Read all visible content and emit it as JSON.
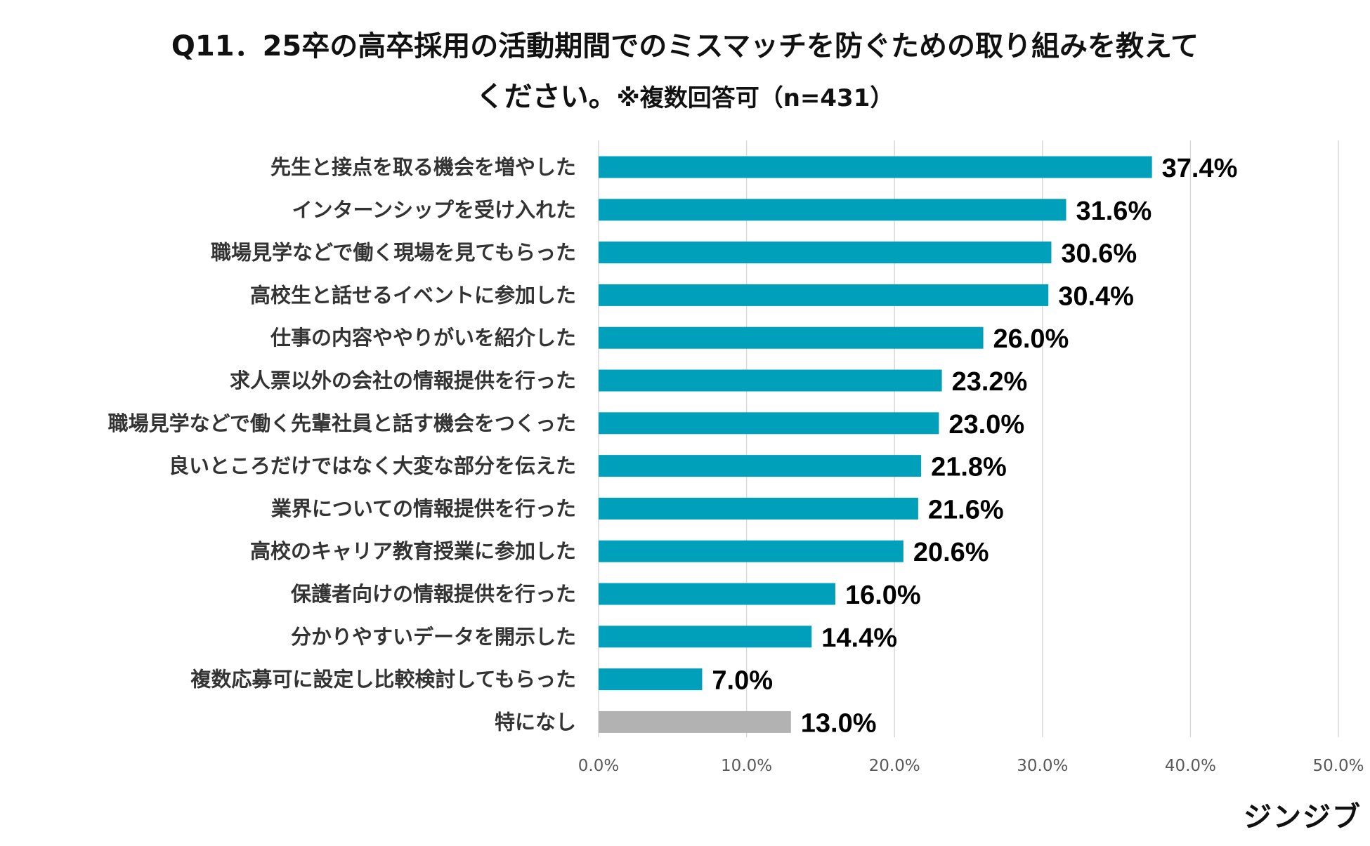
{
  "header": {
    "title_line1": "Q11．25卒の高卒採用の活動期間でのミスマッチを防ぐための取り組みを教えて",
    "title_line2": "ください。",
    "title_note": "※複数回答可（n=431）"
  },
  "brand": {
    "logo_text": "ジンジブ"
  },
  "colors": {
    "primary_bar": "#009FBA",
    "none_bar": "#B2B2B2",
    "grid": "#D9D9D9",
    "tick_text": "#595959",
    "label_text": "#333333",
    "value_text": "#000000"
  },
  "chart_data": {
    "type": "bar",
    "orientation": "horizontal",
    "title": "Q11．25卒の高卒採用の活動期間でのミスマッチを防ぐための取り組みを教えてください。※複数回答可（n=431）",
    "xlabel": "",
    "ylabel": "",
    "xlim": [
      0,
      50
    ],
    "xticks": [
      0,
      10,
      20,
      30,
      40,
      50
    ],
    "xtick_labels": [
      "0.0%",
      "10.0%",
      "20.0%",
      "30.0%",
      "40.0%",
      "50.0%"
    ],
    "grid": true,
    "categories": [
      "先生と接点を取る機会を増やした",
      "インターンシップを受け入れた",
      "職場見学などで働く現場を見てもらった",
      "高校生と話せるイベントに参加した",
      "仕事の内容ややりがいを紹介した",
      "求人票以外の会社の情報提供を行った",
      "職場見学などで働く先輩社員と話す機会をつくった",
      "良いところだけではなく大変な部分を伝えた",
      "業界についての情報提供を行った",
      "高校のキャリア教育授業に参加した",
      "保護者向けの情報提供を行った",
      "分かりやすいデータを開示した",
      "複数応募可に設定し比較検討してもらった",
      "特になし"
    ],
    "values": [
      37.4,
      31.6,
      30.6,
      30.4,
      26.0,
      23.2,
      23.0,
      21.8,
      21.6,
      20.6,
      16.0,
      14.4,
      7.0,
      13.0
    ],
    "value_labels": [
      "37.4%",
      "31.6%",
      "30.6%",
      "30.4%",
      "26.0%",
      "23.2%",
      "23.0%",
      "21.8%",
      "21.6%",
      "20.6%",
      "16.0%",
      "14.4%",
      "7.0%",
      "13.0%"
    ],
    "highlight": [
      "primary",
      "primary",
      "primary",
      "primary",
      "primary",
      "primary",
      "primary",
      "primary",
      "primary",
      "primary",
      "primary",
      "primary",
      "primary",
      "none"
    ]
  }
}
